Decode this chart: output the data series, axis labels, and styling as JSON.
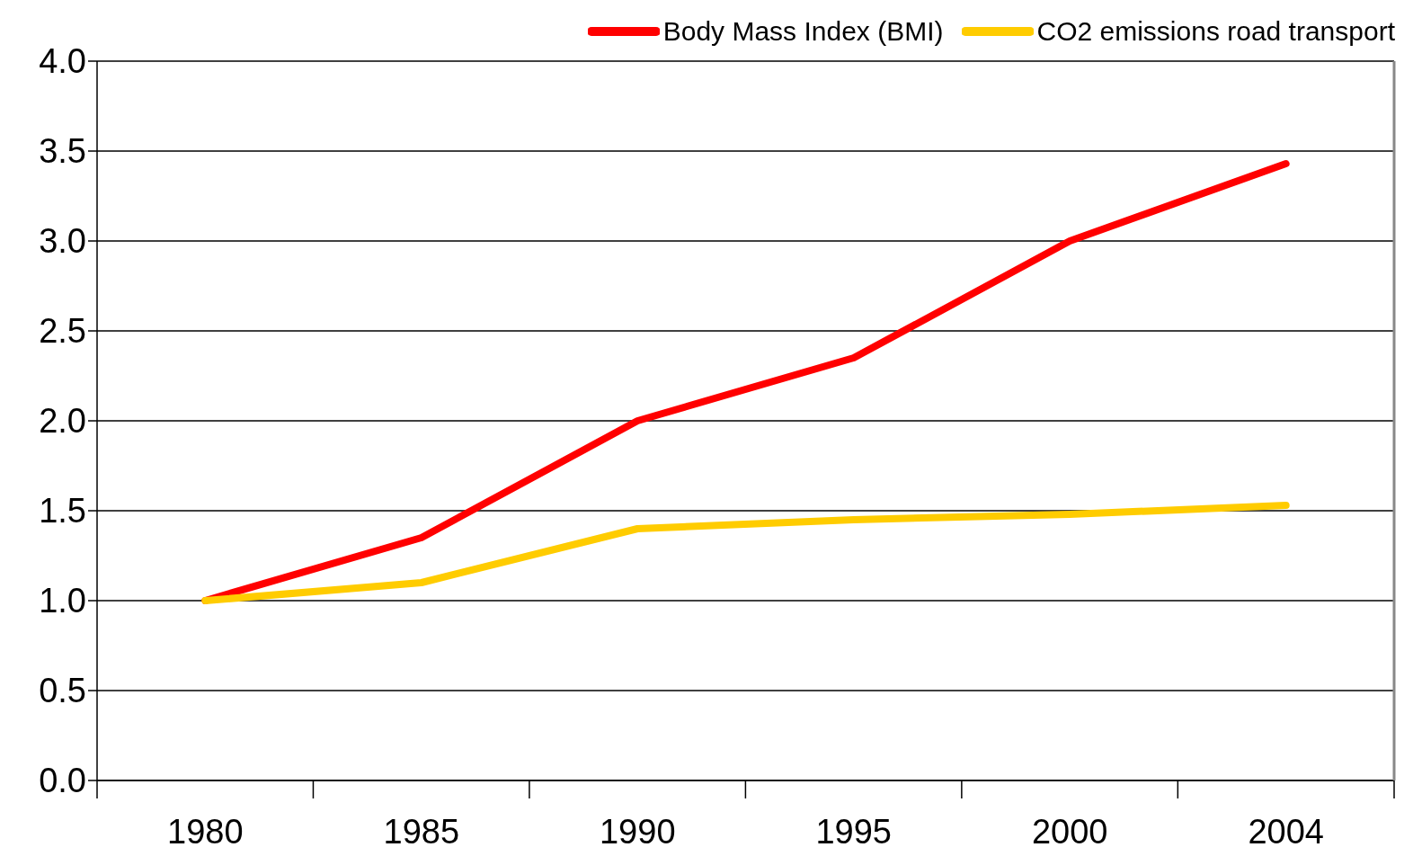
{
  "chart_data": {
    "type": "line",
    "categories": [
      "1980",
      "1985",
      "1990",
      "1995",
      "2000",
      "2004"
    ],
    "series": [
      {
        "name": "Body Mass Index (BMI)",
        "color": "#ff0000",
        "values": [
          1.0,
          1.35,
          2.0,
          2.35,
          3.0,
          3.43
        ]
      },
      {
        "name": "CO2 emissions road transport",
        "color": "#ffcc00",
        "values": [
          1.0,
          1.1,
          1.4,
          1.45,
          1.48,
          1.53
        ]
      }
    ],
    "ylim": [
      0,
      4
    ],
    "yticks": [
      {
        "value": 0,
        "label": "0.0"
      },
      0.5,
      {
        "value": 1,
        "label": "1.0"
      },
      1.5,
      {
        "value": 2,
        "label": "2.0"
      },
      2.5,
      {
        "value": 3,
        "label": "3.0"
      },
      3.5,
      {
        "value": 4,
        "label": "4.0"
      }
    ],
    "grid": "y",
    "legend": "top right",
    "marker": "none",
    "line_style": "solid"
  }
}
